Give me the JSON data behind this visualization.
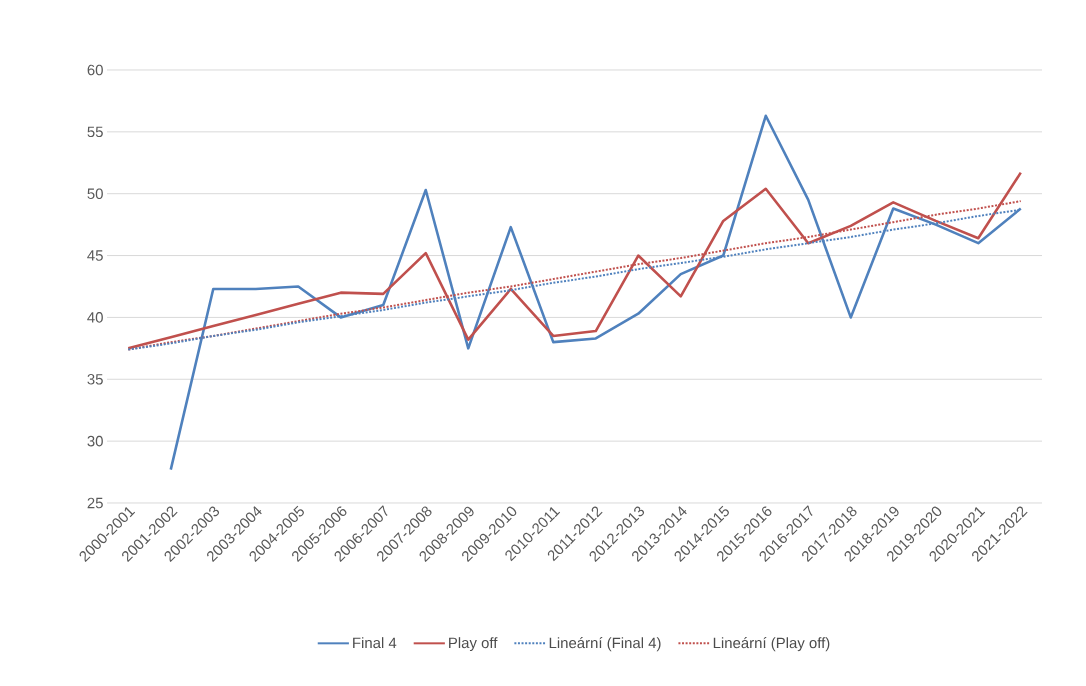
{
  "chart_data": {
    "type": "line",
    "categories": [
      "2000-2001",
      "2001-2002",
      "2002-2003",
      "2003-2004",
      "2004-2005",
      "2005-2006",
      "2006-2007",
      "2007-2008",
      "2008-2009",
      "2009-2010",
      "2010-2011",
      "2011-2012",
      "2012-2013",
      "2013-2014",
      "2014-2015",
      "2015-2016",
      "2016-2017",
      "2017-2018",
      "2018-2019",
      "2019-2020",
      "2020-2021",
      "2021-2022"
    ],
    "series": [
      {
        "name": "Final 4",
        "color": "#4f81bd",
        "line_style": "solid",
        "values": [
          null,
          27.7,
          42.3,
          42.3,
          42.5,
          40.0,
          41.0,
          50.3,
          37.5,
          47.3,
          38.0,
          38.3,
          40.3,
          43.5,
          45.0,
          56.3,
          49.5,
          40.0,
          48.8,
          47.5,
          46.0,
          48.8
        ]
      },
      {
        "name": "Play off",
        "color": "#c0504d",
        "line_style": "solid",
        "values": [
          37.5,
          38.4,
          39.3,
          40.2,
          41.1,
          42.0,
          41.9,
          45.2,
          38.2,
          42.3,
          38.5,
          38.9,
          45.0,
          41.7,
          47.8,
          50.4,
          46.0,
          47.4,
          49.3,
          47.8,
          46.4,
          51.7
        ]
      },
      {
        "name": "Lineární (Final 4)",
        "color": "#4f81bd",
        "line_style": "dotted",
        "values": [
          37.4,
          37.9,
          38.5,
          39.0,
          39.6,
          40.1,
          40.6,
          41.2,
          41.7,
          42.2,
          42.8,
          43.3,
          43.9,
          44.4,
          44.9,
          45.5,
          46.0,
          46.5,
          47.1,
          47.6,
          48.2,
          48.7
        ]
      },
      {
        "name": "Lineární (Play off)",
        "color": "#c0504d",
        "line_style": "dotted",
        "values": [
          37.4,
          38.0,
          38.5,
          39.1,
          39.7,
          40.3,
          40.8,
          41.4,
          42.0,
          42.5,
          43.1,
          43.7,
          44.3,
          44.8,
          45.4,
          46.0,
          46.5,
          47.1,
          47.7,
          48.3,
          48.8,
          49.4
        ]
      }
    ],
    "ylim": [
      25,
      60
    ],
    "yticks": [
      25,
      30,
      35,
      40,
      45,
      50,
      55,
      60
    ],
    "grid": "y",
    "legend": "bottom"
  }
}
